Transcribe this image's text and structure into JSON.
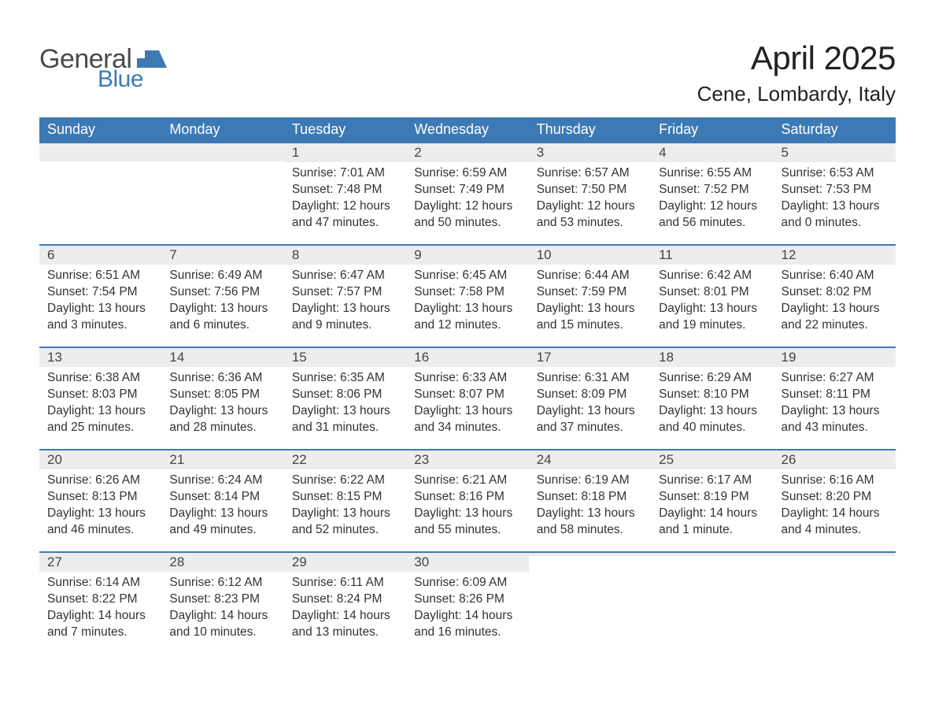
{
  "logo": {
    "general": "General",
    "blue": "Blue"
  },
  "header": {
    "month": "April 2025",
    "location": "Cene, Lombardy, Italy"
  },
  "colors": {
    "header_bg": "#3d79b5",
    "header_text": "#ffffff",
    "daynum_bg": "#ededed",
    "border_accent": "#3d79b5",
    "body_text": "#333333",
    "background": "#ffffff"
  },
  "days_of_week": [
    "Sunday",
    "Monday",
    "Tuesday",
    "Wednesday",
    "Thursday",
    "Friday",
    "Saturday"
  ],
  "weeks": [
    [
      null,
      null,
      {
        "n": "1",
        "sr": "Sunrise: 7:01 AM",
        "ss": "Sunset: 7:48 PM",
        "d1": "Daylight: 12 hours",
        "d2": "and 47 minutes."
      },
      {
        "n": "2",
        "sr": "Sunrise: 6:59 AM",
        "ss": "Sunset: 7:49 PM",
        "d1": "Daylight: 12 hours",
        "d2": "and 50 minutes."
      },
      {
        "n": "3",
        "sr": "Sunrise: 6:57 AM",
        "ss": "Sunset: 7:50 PM",
        "d1": "Daylight: 12 hours",
        "d2": "and 53 minutes."
      },
      {
        "n": "4",
        "sr": "Sunrise: 6:55 AM",
        "ss": "Sunset: 7:52 PM",
        "d1": "Daylight: 12 hours",
        "d2": "and 56 minutes."
      },
      {
        "n": "5",
        "sr": "Sunrise: 6:53 AM",
        "ss": "Sunset: 7:53 PM",
        "d1": "Daylight: 13 hours",
        "d2": "and 0 minutes."
      }
    ],
    [
      {
        "n": "6",
        "sr": "Sunrise: 6:51 AM",
        "ss": "Sunset: 7:54 PM",
        "d1": "Daylight: 13 hours",
        "d2": "and 3 minutes."
      },
      {
        "n": "7",
        "sr": "Sunrise: 6:49 AM",
        "ss": "Sunset: 7:56 PM",
        "d1": "Daylight: 13 hours",
        "d2": "and 6 minutes."
      },
      {
        "n": "8",
        "sr": "Sunrise: 6:47 AM",
        "ss": "Sunset: 7:57 PM",
        "d1": "Daylight: 13 hours",
        "d2": "and 9 minutes."
      },
      {
        "n": "9",
        "sr": "Sunrise: 6:45 AM",
        "ss": "Sunset: 7:58 PM",
        "d1": "Daylight: 13 hours",
        "d2": "and 12 minutes."
      },
      {
        "n": "10",
        "sr": "Sunrise: 6:44 AM",
        "ss": "Sunset: 7:59 PM",
        "d1": "Daylight: 13 hours",
        "d2": "and 15 minutes."
      },
      {
        "n": "11",
        "sr": "Sunrise: 6:42 AM",
        "ss": "Sunset: 8:01 PM",
        "d1": "Daylight: 13 hours",
        "d2": "and 19 minutes."
      },
      {
        "n": "12",
        "sr": "Sunrise: 6:40 AM",
        "ss": "Sunset: 8:02 PM",
        "d1": "Daylight: 13 hours",
        "d2": "and 22 minutes."
      }
    ],
    [
      {
        "n": "13",
        "sr": "Sunrise: 6:38 AM",
        "ss": "Sunset: 8:03 PM",
        "d1": "Daylight: 13 hours",
        "d2": "and 25 minutes."
      },
      {
        "n": "14",
        "sr": "Sunrise: 6:36 AM",
        "ss": "Sunset: 8:05 PM",
        "d1": "Daylight: 13 hours",
        "d2": "and 28 minutes."
      },
      {
        "n": "15",
        "sr": "Sunrise: 6:35 AM",
        "ss": "Sunset: 8:06 PM",
        "d1": "Daylight: 13 hours",
        "d2": "and 31 minutes."
      },
      {
        "n": "16",
        "sr": "Sunrise: 6:33 AM",
        "ss": "Sunset: 8:07 PM",
        "d1": "Daylight: 13 hours",
        "d2": "and 34 minutes."
      },
      {
        "n": "17",
        "sr": "Sunrise: 6:31 AM",
        "ss": "Sunset: 8:09 PM",
        "d1": "Daylight: 13 hours",
        "d2": "and 37 minutes."
      },
      {
        "n": "18",
        "sr": "Sunrise: 6:29 AM",
        "ss": "Sunset: 8:10 PM",
        "d1": "Daylight: 13 hours",
        "d2": "and 40 minutes."
      },
      {
        "n": "19",
        "sr": "Sunrise: 6:27 AM",
        "ss": "Sunset: 8:11 PM",
        "d1": "Daylight: 13 hours",
        "d2": "and 43 minutes."
      }
    ],
    [
      {
        "n": "20",
        "sr": "Sunrise: 6:26 AM",
        "ss": "Sunset: 8:13 PM",
        "d1": "Daylight: 13 hours",
        "d2": "and 46 minutes."
      },
      {
        "n": "21",
        "sr": "Sunrise: 6:24 AM",
        "ss": "Sunset: 8:14 PM",
        "d1": "Daylight: 13 hours",
        "d2": "and 49 minutes."
      },
      {
        "n": "22",
        "sr": "Sunrise: 6:22 AM",
        "ss": "Sunset: 8:15 PM",
        "d1": "Daylight: 13 hours",
        "d2": "and 52 minutes."
      },
      {
        "n": "23",
        "sr": "Sunrise: 6:21 AM",
        "ss": "Sunset: 8:16 PM",
        "d1": "Daylight: 13 hours",
        "d2": "and 55 minutes."
      },
      {
        "n": "24",
        "sr": "Sunrise: 6:19 AM",
        "ss": "Sunset: 8:18 PM",
        "d1": "Daylight: 13 hours",
        "d2": "and 58 minutes."
      },
      {
        "n": "25",
        "sr": "Sunrise: 6:17 AM",
        "ss": "Sunset: 8:19 PM",
        "d1": "Daylight: 14 hours",
        "d2": "and 1 minute."
      },
      {
        "n": "26",
        "sr": "Sunrise: 6:16 AM",
        "ss": "Sunset: 8:20 PM",
        "d1": "Daylight: 14 hours",
        "d2": "and 4 minutes."
      }
    ],
    [
      {
        "n": "27",
        "sr": "Sunrise: 6:14 AM",
        "ss": "Sunset: 8:22 PM",
        "d1": "Daylight: 14 hours",
        "d2": "and 7 minutes."
      },
      {
        "n": "28",
        "sr": "Sunrise: 6:12 AM",
        "ss": "Sunset: 8:23 PM",
        "d1": "Daylight: 14 hours",
        "d2": "and 10 minutes."
      },
      {
        "n": "29",
        "sr": "Sunrise: 6:11 AM",
        "ss": "Sunset: 8:24 PM",
        "d1": "Daylight: 14 hours",
        "d2": "and 13 minutes."
      },
      {
        "n": "30",
        "sr": "Sunrise: 6:09 AM",
        "ss": "Sunset: 8:26 PM",
        "d1": "Daylight: 14 hours",
        "d2": "and 16 minutes."
      },
      null,
      null,
      null
    ]
  ]
}
